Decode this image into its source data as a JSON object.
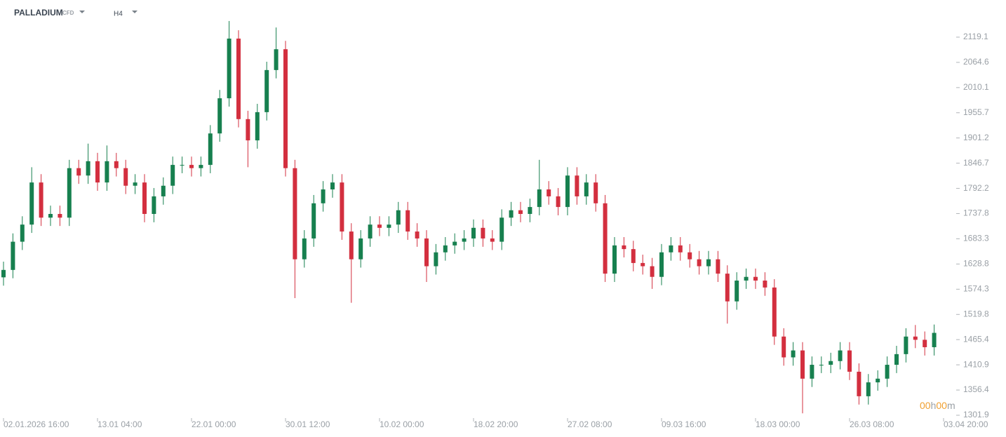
{
  "header": {
    "symbol": "PALLADIUM",
    "instrument": "CFD",
    "timeframe": "H4"
  },
  "countdown": {
    "hours": "00",
    "hours_unit": "h",
    "minutes": "00",
    "minutes_unit": "m"
  },
  "chart_data": {
    "type": "candlestick",
    "up_color": "#17804f",
    "down_color": "#d32f3f",
    "categories": [
      "02.01.2026 16:00",
      null,
      null,
      null,
      null,
      null,
      null,
      null,
      null,
      null,
      "13.01 04:00",
      null,
      null,
      null,
      null,
      null,
      null,
      null,
      null,
      null,
      "22.01 00:00",
      null,
      null,
      null,
      null,
      null,
      null,
      null,
      null,
      null,
      "30.01 12:00",
      null,
      null,
      null,
      null,
      null,
      null,
      null,
      null,
      null,
      "10.02 00:00",
      null,
      null,
      null,
      null,
      null,
      null,
      null,
      null,
      null,
      "18.02 20:00",
      null,
      null,
      null,
      null,
      null,
      null,
      null,
      null,
      null,
      "27.02 08:00",
      null,
      null,
      null,
      null,
      null,
      null,
      null,
      null,
      null,
      "09.03 16:00",
      null,
      null,
      null,
      null,
      null,
      null,
      null,
      null,
      null,
      "18.03 00:00",
      null,
      null,
      null,
      null,
      null,
      null,
      null,
      null,
      null,
      "26.03 08:00",
      null,
      null,
      null,
      null,
      null,
      null,
      null,
      null,
      null,
      "03.04 20:00"
    ],
    "open": [
      1600,
      1616,
      1677,
      1714,
      1805,
      1729,
      1737,
      1729,
      1836,
      1820,
      1851,
      1805,
      1851,
      1836,
      1798,
      1805,
      1737,
      1775,
      1798,
      1843,
      1843,
      1836,
      1843,
      1911,
      1987,
      2116,
      1942,
      1896,
      1957,
      2048,
      2093,
      1836,
      1639,
      1684,
      1760,
      1790,
      1805,
      1699,
      1639,
      1684,
      1714,
      1707,
      1714,
      1745,
      1699,
      1684,
      1624,
      1654,
      1669,
      1677,
      1684,
      1707,
      1684,
      1677,
      1729,
      1745,
      1737,
      1752,
      1790,
      1775,
      1752,
      1820,
      1775,
      1805,
      1760,
      1608,
      1669,
      1661,
      1631,
      1624,
      1601,
      1654,
      1669,
      1654,
      1639,
      1624,
      1639,
      1608,
      1548,
      1593,
      1601,
      1593,
      1578,
      1472,
      1427,
      1442,
      1381,
      1411,
      1411,
      1419,
      1442,
      1396,
      1343,
      1373,
      1381,
      1411,
      1434,
      1472,
      1465,
      1449,
      null
    ],
    "high": [
      1634,
      1695,
      1732,
      1838,
      1823,
      1755,
      1755,
      1854,
      1854,
      1889,
      1869,
      1885,
      1869,
      1854,
      1823,
      1823,
      1793,
      1816,
      1861,
      1861,
      1861,
      1861,
      1929,
      2005,
      2154,
      2134,
      1960,
      1975,
      2066,
      2140,
      2111,
      1854,
      1702,
      1778,
      1808,
      1823,
      1823,
      1717,
      1702,
      1732,
      1732,
      1732,
      1763,
      1763,
      1717,
      1702,
      1672,
      1687,
      1695,
      1702,
      1725,
      1725,
      1702,
      1747,
      1763,
      1763,
      1770,
      1854,
      1808,
      1793,
      1838,
      1838,
      1823,
      1823,
      1778,
      1687,
      1687,
      1679,
      1649,
      1642,
      1672,
      1687,
      1687,
      1672,
      1657,
      1657,
      1657,
      1626,
      1611,
      1619,
      1619,
      1611,
      1596,
      1490,
      1460,
      1460,
      1429,
      1429,
      1437,
      1460,
      1460,
      1414,
      1391,
      1399,
      1429,
      1452,
      1490,
      1497,
      1483,
      1498,
      null
    ],
    "low": [
      1582,
      1598,
      1659,
      1696,
      1711,
      1711,
      1711,
      1711,
      1802,
      1802,
      1787,
      1787,
      1818,
      1780,
      1780,
      1719,
      1719,
      1757,
      1780,
      1825,
      1818,
      1818,
      1825,
      1893,
      1969,
      1924,
      1838,
      1878,
      1939,
      2030,
      1818,
      1555,
      1621,
      1666,
      1742,
      1772,
      1681,
      1545,
      1621,
      1666,
      1689,
      1689,
      1696,
      1681,
      1666,
      1590,
      1606,
      1636,
      1651,
      1659,
      1666,
      1666,
      1659,
      1659,
      1711,
      1719,
      1719,
      1734,
      1757,
      1734,
      1734,
      1757,
      1757,
      1742,
      1590,
      1590,
      1643,
      1613,
      1606,
      1575,
      1583,
      1636,
      1636,
      1621,
      1606,
      1606,
      1590,
      1500,
      1530,
      1575,
      1575,
      1560,
      1454,
      1409,
      1409,
      1306,
      1363,
      1393,
      1393,
      1401,
      1378,
      1325,
      1325,
      1355,
      1363,
      1393,
      1416,
      1447,
      1431,
      1431,
      null
    ],
    "close": [
      1616,
      1677,
      1714,
      1805,
      1729,
      1737,
      1729,
      1836,
      1820,
      1851,
      1805,
      1851,
      1836,
      1798,
      1805,
      1737,
      1775,
      1798,
      1843,
      1843,
      1836,
      1843,
      1911,
      1987,
      2116,
      1942,
      1896,
      1957,
      2048,
      2093,
      1836,
      1639,
      1684,
      1760,
      1790,
      1805,
      1699,
      1639,
      1684,
      1714,
      1707,
      1714,
      1745,
      1699,
      1684,
      1624,
      1654,
      1669,
      1677,
      1684,
      1707,
      1684,
      1677,
      1729,
      1745,
      1737,
      1752,
      1790,
      1775,
      1752,
      1820,
      1775,
      1805,
      1760,
      1608,
      1669,
      1661,
      1631,
      1624,
      1601,
      1654,
      1669,
      1654,
      1639,
      1624,
      1639,
      1608,
      1548,
      1593,
      1601,
      1593,
      1578,
      1472,
      1427,
      1442,
      1381,
      1411,
      1411,
      1419,
      1442,
      1396,
      1343,
      1373,
      1381,
      1411,
      1434,
      1472,
      1465,
      1449,
      1480,
      null
    ],
    "ylim": [
      1301.9,
      2161.5
    ],
    "yticks": [
      2119.1,
      2064.6,
      2010.1,
      1955.7,
      1901.2,
      1846.7,
      1792.2,
      1737.8,
      1683.3,
      1628.8,
      1574.3,
      1519.8,
      1465.4,
      1410.9,
      1356.4,
      1301.9
    ]
  }
}
